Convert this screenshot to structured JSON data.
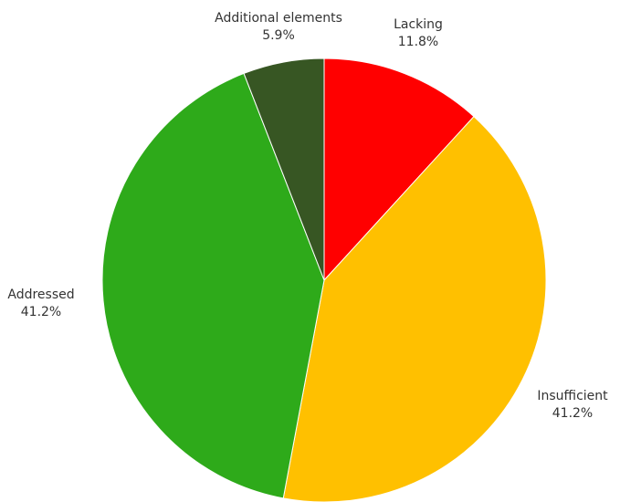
{
  "chart_data": {
    "type": "pie",
    "title": "",
    "start_angle_deg": 0,
    "direction": "clockwise",
    "slices": [
      {
        "label": "Lacking",
        "value": 11.8,
        "value_label": "11.8%",
        "color": "#ff0000"
      },
      {
        "label": "Insufficient",
        "value": 41.2,
        "value_label": "41.2%",
        "color": "#ffc000"
      },
      {
        "label": "Addressed",
        "value": 41.2,
        "value_label": "41.2%",
        "color": "#2eaa1a"
      },
      {
        "label": "Additional elements",
        "value": 5.9,
        "value_label": "5.9%",
        "color": "#375623"
      }
    ]
  }
}
